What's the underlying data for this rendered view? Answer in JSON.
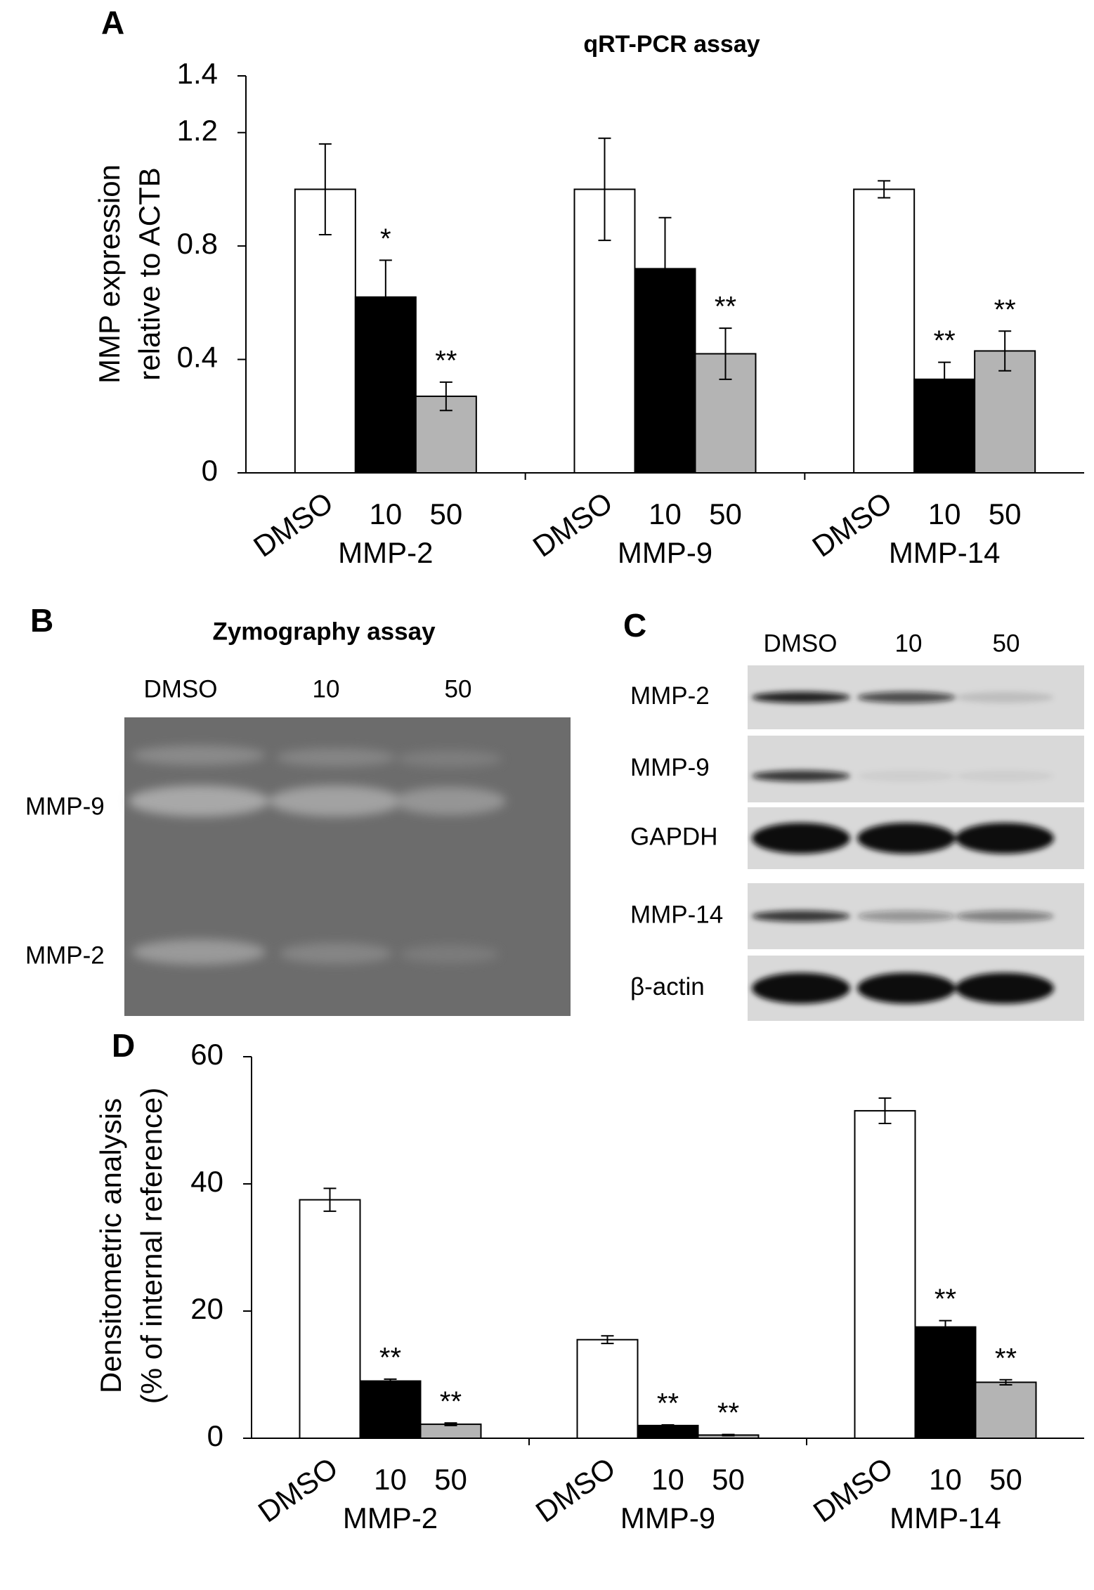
{
  "chart_data": [
    {
      "type": "bar",
      "panel": "A",
      "title": "qRT-PCR assay",
      "y_label": [
        "MMP expression",
        "relative to ACTB"
      ],
      "categories": [
        "MMP-2",
        "MMP-9",
        "MMP-14"
      ],
      "series": [
        {
          "name": "DMSO",
          "color": "#ffffff",
          "values": [
            1.0,
            1.0,
            1.0
          ],
          "errors": [
            0.16,
            0.18,
            0.03
          ]
        },
        {
          "name": "10",
          "color": "#000000",
          "values": [
            0.62,
            0.72,
            0.33
          ],
          "errors": [
            0.13,
            0.18,
            0.06
          ],
          "labels": [
            "*",
            null,
            "**"
          ]
        },
        {
          "name": "50",
          "color": "#b4b4b4",
          "values": [
            0.27,
            0.42,
            0.43
          ],
          "errors": [
            0.05,
            0.09,
            0.07
          ],
          "labels": [
            "**",
            "**",
            "**"
          ]
        }
      ],
      "ylim": [
        0,
        1.4
      ],
      "yticks": [
        0,
        0.4,
        0.8,
        1.2,
        1.4
      ]
    },
    {
      "type": "bar",
      "panel": "D",
      "y_label": [
        "Densitometric analysis",
        "(% of internal reference)"
      ],
      "categories": [
        "MMP-2",
        "MMP-9",
        "MMP-14"
      ],
      "series": [
        {
          "name": "DMSO",
          "color": "#ffffff",
          "values": [
            37.5,
            15.5,
            51.5
          ],
          "errors": [
            1.8,
            0.6,
            2
          ]
        },
        {
          "name": "10",
          "color": "#000000",
          "values": [
            9,
            2,
            17.5
          ],
          "errors": [
            0.3,
            0.1,
            1
          ],
          "labels": [
            "**",
            "**",
            "**"
          ]
        },
        {
          "name": "50",
          "color": "#b4b4b4",
          "values": [
            2.2,
            0.5,
            8.8
          ],
          "errors": [
            0.2,
            0.1,
            0.4
          ],
          "labels": [
            "**",
            "**",
            "**"
          ]
        }
      ],
      "ylim": [
        0,
        60
      ],
      "yticks": [
        0,
        20,
        40,
        60
      ]
    }
  ],
  "zymography": {
    "panel": "B",
    "title": "Zymography assay",
    "lanes": [
      "DMSO",
      "10",
      "50"
    ],
    "bands": [
      "MMP-9",
      "MMP-2"
    ]
  },
  "western_blot": {
    "panel": "C",
    "lanes": [
      "DMSO",
      "10",
      "50"
    ],
    "rows": [
      "MMP-2",
      "MMP-9",
      "GAPDH",
      "MMP-14",
      "β-actin"
    ]
  }
}
